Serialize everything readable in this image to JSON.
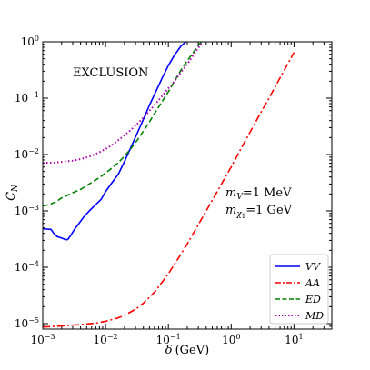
{
  "chart_data": {
    "type": "line",
    "xlabel_main": "δ",
    "xlabel_unit": "(GeV)",
    "ylabel_base": "C",
    "ylabel_sub": "N",
    "xscale": "log",
    "yscale": "log",
    "xlim": [
      0.001,
      40
    ],
    "ylim": [
      8e-06,
      1
    ],
    "x_ticks": [
      {
        "value": 0.001,
        "base": "10",
        "exp": "−3"
      },
      {
        "value": 0.01,
        "base": "10",
        "exp": "−2"
      },
      {
        "value": 0.1,
        "base": "10",
        "exp": "−1"
      },
      {
        "value": 1,
        "base": "10",
        "exp": "0"
      },
      {
        "value": 10,
        "base": "10",
        "exp": "1"
      }
    ],
    "y_ticks": [
      {
        "value": 1e-05,
        "base": "10",
        "exp": "−5"
      },
      {
        "value": 0.0001,
        "base": "10",
        "exp": "−4"
      },
      {
        "value": 0.001,
        "base": "10",
        "exp": "−3"
      },
      {
        "value": 0.01,
        "base": "10",
        "exp": "−2"
      },
      {
        "value": 0.1,
        "base": "10",
        "exp": "−1"
      },
      {
        "value": 1,
        "base": "10",
        "exp": "0"
      }
    ],
    "annotations": {
      "exclusion": "EXCLUSION",
      "mass_v_label": "m",
      "mass_v_sub": "V",
      "mass_v_value": "=1 MeV",
      "mass_chi_label": "m",
      "mass_chi_sub": "χ",
      "mass_chi_subsub": "1",
      "mass_chi_value": "=1 GeV"
    },
    "legend_position": "bottom-right",
    "series": [
      {
        "name": "VV",
        "color": "#0000ff",
        "dash": "solid",
        "x": [
          0.001,
          0.00135,
          0.0015,
          0.0017,
          0.002,
          0.0023,
          0.0025,
          0.0028,
          0.0032,
          0.0037,
          0.0045,
          0.0055,
          0.007,
          0.0085,
          0.01,
          0.0125,
          0.016,
          0.02,
          0.025,
          0.032,
          0.04,
          0.05,
          0.063,
          0.08,
          0.1,
          0.125,
          0.16,
          0.2
        ],
        "y": [
          0.00048,
          0.00047,
          0.0004,
          0.00035,
          0.00033,
          0.00031,
          0.00031,
          0.00037,
          0.00047,
          0.00058,
          0.00078,
          0.001,
          0.0013,
          0.0016,
          0.0022,
          0.0031,
          0.0045,
          0.0075,
          0.013,
          0.024,
          0.042,
          0.075,
          0.13,
          0.23,
          0.38,
          0.58,
          0.85,
          1.05
        ]
      },
      {
        "name": "AA",
        "color": "#ff0000",
        "dash": "dashdot",
        "x": [
          0.001,
          0.002,
          0.004,
          0.007,
          0.01,
          0.015,
          0.02,
          0.03,
          0.04,
          0.06,
          0.08,
          0.1,
          0.15,
          0.2,
          0.3,
          0.4,
          0.6,
          0.8,
          1,
          1.5,
          2,
          3,
          4,
          6,
          8,
          10
        ],
        "y": [
          8.7e-06,
          9.1e-06,
          9.6e-06,
          1.02e-05,
          1.1e-05,
          1.24e-05,
          1.4e-05,
          1.8e-05,
          2.3e-05,
          3.6e-05,
          5.5e-05,
          7.7e-05,
          0.000155,
          0.00026,
          0.00057,
          0.001,
          0.0022,
          0.0039,
          0.006,
          0.014,
          0.025,
          0.057,
          0.1,
          0.23,
          0.41,
          0.65
        ]
      },
      {
        "name": "ED",
        "color": "#008000",
        "dash": "dashed",
        "x": [
          0.001,
          0.0013,
          0.0017,
          0.002,
          0.0025,
          0.003,
          0.004,
          0.005,
          0.006,
          0.008,
          0.01,
          0.013,
          0.016,
          0.02,
          0.025,
          0.032,
          0.04,
          0.05,
          0.063,
          0.08,
          0.1,
          0.125,
          0.16,
          0.2,
          0.25,
          0.3,
          0.35
        ],
        "y": [
          0.00122,
          0.0013,
          0.0015,
          0.0017,
          0.0019,
          0.0021,
          0.0024,
          0.0028,
          0.0032,
          0.0039,
          0.0047,
          0.0059,
          0.0072,
          0.0093,
          0.0125,
          0.018,
          0.026,
          0.038,
          0.058,
          0.088,
          0.13,
          0.2,
          0.32,
          0.46,
          0.65,
          0.86,
          1.05
        ]
      },
      {
        "name": "MD",
        "color": "#aa00aa",
        "dash": "dotted",
        "x": [
          0.001,
          0.0015,
          0.002,
          0.003,
          0.004,
          0.005,
          0.006,
          0.008,
          0.01,
          0.013,
          0.016,
          0.02,
          0.025,
          0.032,
          0.04,
          0.05,
          0.063,
          0.08,
          0.1,
          0.125,
          0.16,
          0.2,
          0.25,
          0.3,
          0.35
        ],
        "y": [
          0.0071,
          0.0072,
          0.0074,
          0.0078,
          0.0083,
          0.0089,
          0.0095,
          0.011,
          0.0125,
          0.015,
          0.018,
          0.022,
          0.027,
          0.035,
          0.045,
          0.06,
          0.08,
          0.11,
          0.15,
          0.2,
          0.29,
          0.4,
          0.58,
          0.78,
          1.0
        ]
      }
    ]
  }
}
